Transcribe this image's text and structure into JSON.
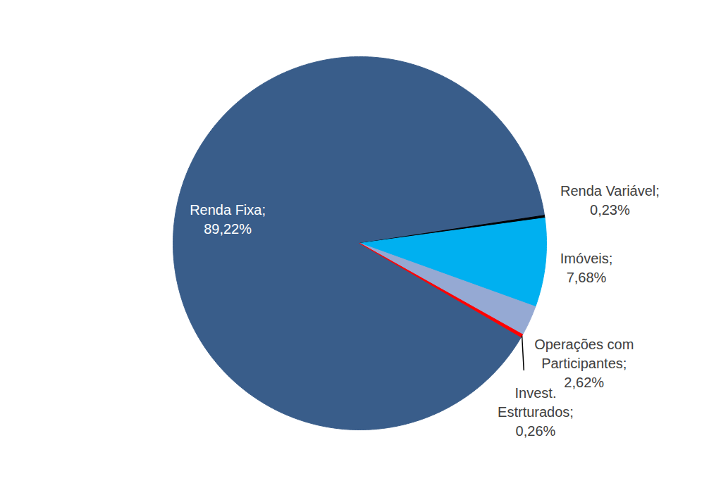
{
  "chart_data": {
    "type": "pie",
    "categories": [
      "Renda Fixa;",
      "Renda Variável;",
      "Imóveis;",
      "Operações com Participantes;",
      "Invest. Estrturados;"
    ],
    "values": [
      89.22,
      0.23,
      7.68,
      2.62,
      0.26
    ],
    "value_labels": [
      "89,22%",
      "0,23%",
      "7,68%",
      "2,62%",
      "0,26%"
    ],
    "colors": [
      "#395d8a",
      "#000000",
      "#00b0f0",
      "#95a9d3",
      "#ff0000"
    ],
    "data_labels": true
  }
}
